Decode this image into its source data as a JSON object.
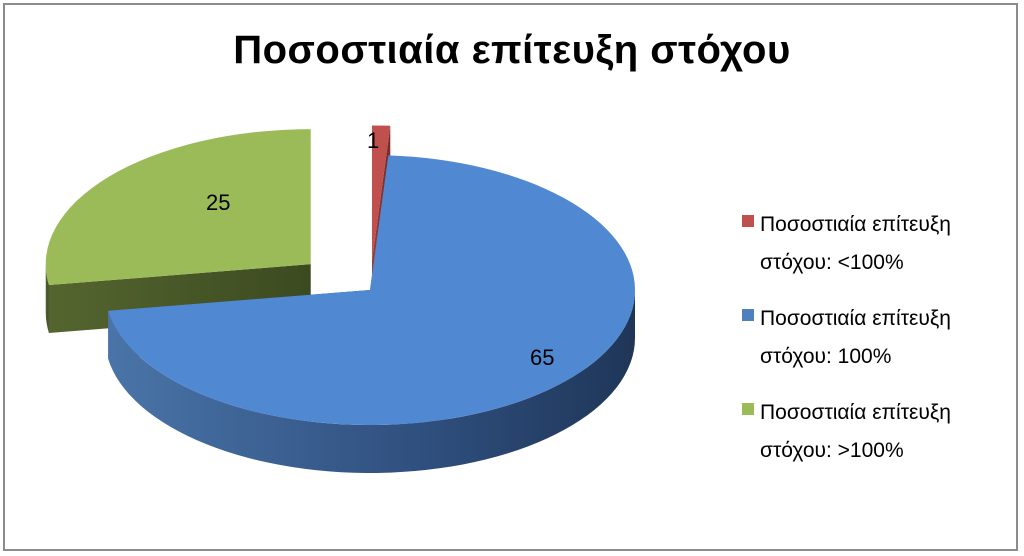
{
  "chart_data": {
    "type": "pie",
    "title": "Ποσοστιαία επίτευξη στόχου",
    "slices": [
      {
        "name": "Ποσοστιαία επίτευξη στόχου: <100%",
        "legend_lines": [
          "Ποσοστιαία επίτευξη",
          "στόχου: <100%"
        ],
        "value": 1,
        "color": "#c0504d"
      },
      {
        "name": "Ποσοστιαία επίτευξη στόχου: 100%",
        "legend_lines": [
          "Ποσοστιαία επίτευξη",
          "στόχου: 100%"
        ],
        "value": 65,
        "color": "#4f81bd"
      },
      {
        "name": "Ποσοστιαία επίτευξη στόχου: >100%",
        "legend_lines": [
          "Ποσοστιαία επίτευξη",
          "στόχου: >100%"
        ],
        "value": 25,
        "color": "#9bbb59"
      }
    ],
    "exploded": true,
    "style": "3d",
    "legend_position": "right"
  }
}
